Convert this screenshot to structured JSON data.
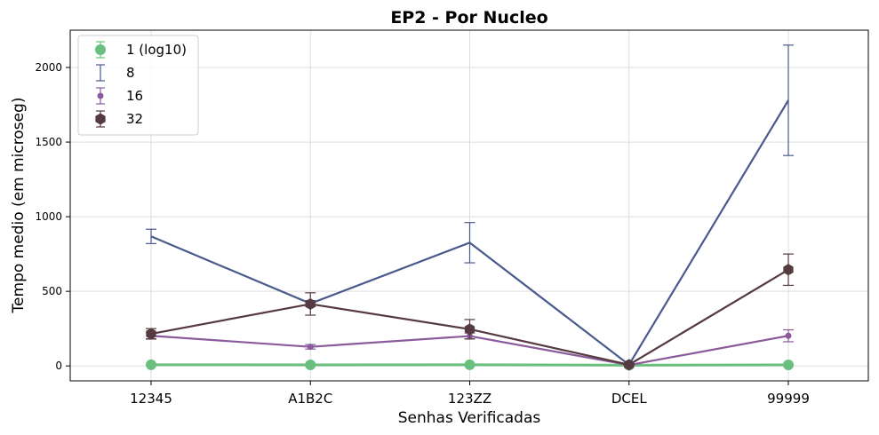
{
  "chart_data": {
    "type": "line",
    "title": "EP2 - Por Nucleo",
    "xlabel": "Senhas Verificadas",
    "ylabel": "Tempo medio (em microseg)",
    "categories": [
      "12345",
      "A1B2C",
      "123ZZ",
      "DCEL",
      "99999"
    ],
    "ylim": [
      -100,
      2250
    ],
    "yticks": [
      0,
      500,
      1000,
      1500,
      2000
    ],
    "grid": true,
    "legend": "top-left",
    "series": [
      {
        "name": "1 (log10)",
        "color": "#6abf7f",
        "marker": "circle-large",
        "values": [
          8,
          7,
          8,
          5,
          7
        ],
        "errors": [
          2,
          2,
          2,
          2,
          2
        ]
      },
      {
        "name": "8",
        "color": "#4a5a8c",
        "marker": "none",
        "values": [
          868,
          418,
          826,
          8,
          1780
        ],
        "errors": [
          48,
          20,
          135,
          3,
          370
        ]
      },
      {
        "name": "16",
        "color": "#8a5a9a",
        "marker": "circle-small",
        "values": [
          202,
          128,
          200,
          6,
          202
        ],
        "errors": [
          20,
          15,
          20,
          3,
          40
        ]
      },
      {
        "name": "32",
        "color": "#553a3f",
        "marker": "hexagon",
        "values": [
          215,
          415,
          246,
          8,
          645
        ],
        "errors": [
          35,
          75,
          65,
          3,
          105
        ]
      }
    ]
  }
}
